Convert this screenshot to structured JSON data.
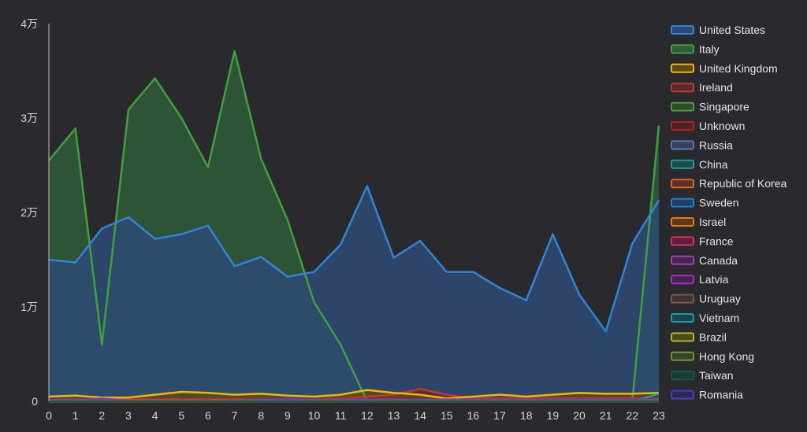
{
  "chart_data": {
    "type": "area",
    "x": [
      0,
      1,
      2,
      3,
      4,
      5,
      6,
      7,
      8,
      9,
      10,
      11,
      12,
      13,
      14,
      15,
      16,
      17,
      18,
      19,
      20,
      21,
      22,
      23
    ],
    "xlim": [
      0,
      23
    ],
    "ylim": [
      0,
      40000
    ],
    "y_ticks": [
      0,
      10000,
      20000,
      30000,
      40000
    ],
    "y_tick_labels": [
      "0",
      "1万",
      "2万",
      "3万",
      "4万"
    ],
    "grid": false,
    "legend_position": "right",
    "series": [
      {
        "name": "United States",
        "color": "#2f86d8",
        "fill": "#2d4a73",
        "values": [
          15000,
          14700,
          18300,
          19500,
          17200,
          17700,
          18600,
          14300,
          15300,
          13200,
          13700,
          16600,
          22800,
          15200,
          17000,
          13700,
          13700,
          12000,
          10700,
          17700,
          11300,
          7400,
          16700,
          21300
        ]
      },
      {
        "name": "Italy",
        "color": "#3fa13f",
        "fill": "#2f5c3a",
        "values": [
          25500,
          28900,
          6000,
          30900,
          34200,
          30000,
          24800,
          37100,
          25700,
          19200,
          10500,
          6000,
          0,
          0,
          0,
          0,
          0,
          0,
          0,
          0,
          0,
          0,
          0,
          29200
        ]
      },
      {
        "name": "United Kingdom",
        "color": "#f2b705",
        "fill": "#5a4a1a",
        "values": [
          500,
          600,
          400,
          400,
          700,
          1000,
          900,
          700,
          800,
          600,
          500,
          700,
          1200,
          900,
          700,
          300,
          500,
          700,
          500,
          700,
          900,
          800,
          800,
          900
        ]
      },
      {
        "name": "Ireland",
        "color": "#c0392b",
        "fill": "#5a2a2a",
        "values": [
          200,
          200,
          200,
          200,
          200,
          200,
          200,
          200,
          200,
          200,
          200,
          300,
          500,
          700,
          1300,
          700,
          300,
          300,
          300,
          300,
          300,
          300,
          300,
          300
        ]
      },
      {
        "name": "Singapore",
        "color": "#4c9a3b",
        "fill": "#2f4a30",
        "values": [
          0,
          0,
          0,
          0,
          0,
          0,
          0,
          0,
          0,
          0,
          0,
          0,
          0,
          0,
          0,
          0,
          0,
          0,
          0,
          0,
          0,
          0,
          0,
          0
        ]
      },
      {
        "name": "Unknown",
        "color": "#b22222",
        "fill": "#4a2222",
        "values": [
          0,
          0,
          0,
          0,
          0,
          0,
          0,
          0,
          0,
          0,
          0,
          0,
          0,
          0,
          0,
          0,
          0,
          0,
          0,
          0,
          0,
          0,
          0,
          0
        ]
      },
      {
        "name": "Russia",
        "color": "#5b73b8",
        "fill": "#33405e",
        "values": [
          0,
          0,
          0,
          0,
          0,
          0,
          0,
          0,
          0,
          0,
          0,
          0,
          0,
          0,
          0,
          0,
          0,
          0,
          0,
          0,
          0,
          0,
          0,
          0
        ]
      },
      {
        "name": "China",
        "color": "#1a9c9c",
        "fill": "#1f4a4a",
        "values": [
          0,
          0,
          0,
          0,
          0,
          0,
          0,
          0,
          0,
          0,
          0,
          0,
          0,
          0,
          0,
          0,
          0,
          0,
          0,
          0,
          0,
          0,
          0,
          800
        ]
      },
      {
        "name": "Republic of Korea",
        "color": "#e0652b",
        "fill": "#5a3322",
        "values": [
          0,
          0,
          0,
          0,
          0,
          0,
          0,
          0,
          0,
          0,
          0,
          0,
          0,
          0,
          0,
          0,
          0,
          0,
          0,
          0,
          0,
          0,
          0,
          0
        ]
      },
      {
        "name": "Sweden",
        "color": "#1f7fd0",
        "fill": "#22405e",
        "values": [
          0,
          0,
          0,
          0,
          0,
          0,
          0,
          0,
          0,
          0,
          0,
          0,
          0,
          0,
          0,
          0,
          0,
          0,
          0,
          0,
          0,
          0,
          0,
          0
        ]
      },
      {
        "name": "Israel",
        "color": "#e07b17",
        "fill": "#5a3a18",
        "values": [
          0,
          0,
          0,
          0,
          0,
          0,
          0,
          0,
          0,
          0,
          0,
          0,
          0,
          0,
          0,
          0,
          0,
          0,
          0,
          0,
          0,
          0,
          0,
          0
        ]
      },
      {
        "name": "France",
        "color": "#d62f6d",
        "fill": "#5a2238",
        "values": [
          100,
          100,
          100,
          100,
          100,
          100,
          100,
          100,
          100,
          100,
          100,
          100,
          100,
          100,
          100,
          100,
          100,
          100,
          100,
          100,
          100,
          100,
          100,
          100
        ]
      },
      {
        "name": "Canada",
        "color": "#a23bbf",
        "fill": "#45264f",
        "values": [
          100,
          100,
          300,
          100,
          100,
          100,
          100,
          100,
          100,
          100,
          100,
          100,
          100,
          100,
          100,
          100,
          100,
          100,
          100,
          100,
          100,
          100,
          100,
          100
        ]
      },
      {
        "name": "Latvia",
        "color": "#a52fc4",
        "fill": "#45224f",
        "values": [
          0,
          0,
          0,
          0,
          0,
          0,
          0,
          0,
          0,
          0,
          0,
          0,
          0,
          0,
          0,
          0,
          0,
          0,
          0,
          0,
          0,
          0,
          0,
          0
        ]
      },
      {
        "name": "Uruguay",
        "color": "#7a5a4a",
        "fill": "#3d3230",
        "values": [
          0,
          0,
          0,
          0,
          0,
          0,
          0,
          0,
          0,
          0,
          0,
          0,
          0,
          0,
          0,
          0,
          0,
          0,
          0,
          0,
          0,
          0,
          0,
          0
        ]
      },
      {
        "name": "Vietnam",
        "color": "#11a0a8",
        "fill": "#1d4548",
        "values": [
          0,
          0,
          0,
          0,
          0,
          0,
          0,
          0,
          0,
          0,
          0,
          0,
          0,
          0,
          0,
          0,
          0,
          0,
          0,
          0,
          0,
          0,
          0,
          0
        ]
      },
      {
        "name": "Brazil",
        "color": "#b8b21f",
        "fill": "#4a4a22",
        "values": [
          0,
          0,
          0,
          0,
          0,
          0,
          0,
          0,
          0,
          0,
          0,
          0,
          0,
          0,
          0,
          0,
          0,
          0,
          0,
          0,
          0,
          0,
          0,
          0
        ]
      },
      {
        "name": "Hong Kong",
        "color": "#6e9a2a",
        "fill": "#38452a",
        "values": [
          0,
          0,
          0,
          0,
          0,
          0,
          0,
          0,
          0,
          0,
          0,
          0,
          0,
          0,
          0,
          0,
          0,
          0,
          0,
          0,
          0,
          0,
          0,
          0
        ]
      },
      {
        "name": "Taiwan",
        "color": "#0f5e45",
        "fill": "#1a3a30",
        "values": [
          0,
          0,
          0,
          0,
          0,
          0,
          0,
          0,
          0,
          0,
          0,
          0,
          0,
          0,
          0,
          0,
          0,
          0,
          0,
          0,
          0,
          0,
          0,
          0
        ]
      },
      {
        "name": "Romania",
        "color": "#4b3fbf",
        "fill": "#2c2a55",
        "values": [
          200,
          200,
          200,
          100,
          100,
          100,
          100,
          100,
          200,
          300,
          200,
          200,
          200,
          200,
          200,
          200,
          200,
          200,
          200,
          200,
          200,
          200,
          200,
          200
        ]
      }
    ]
  }
}
